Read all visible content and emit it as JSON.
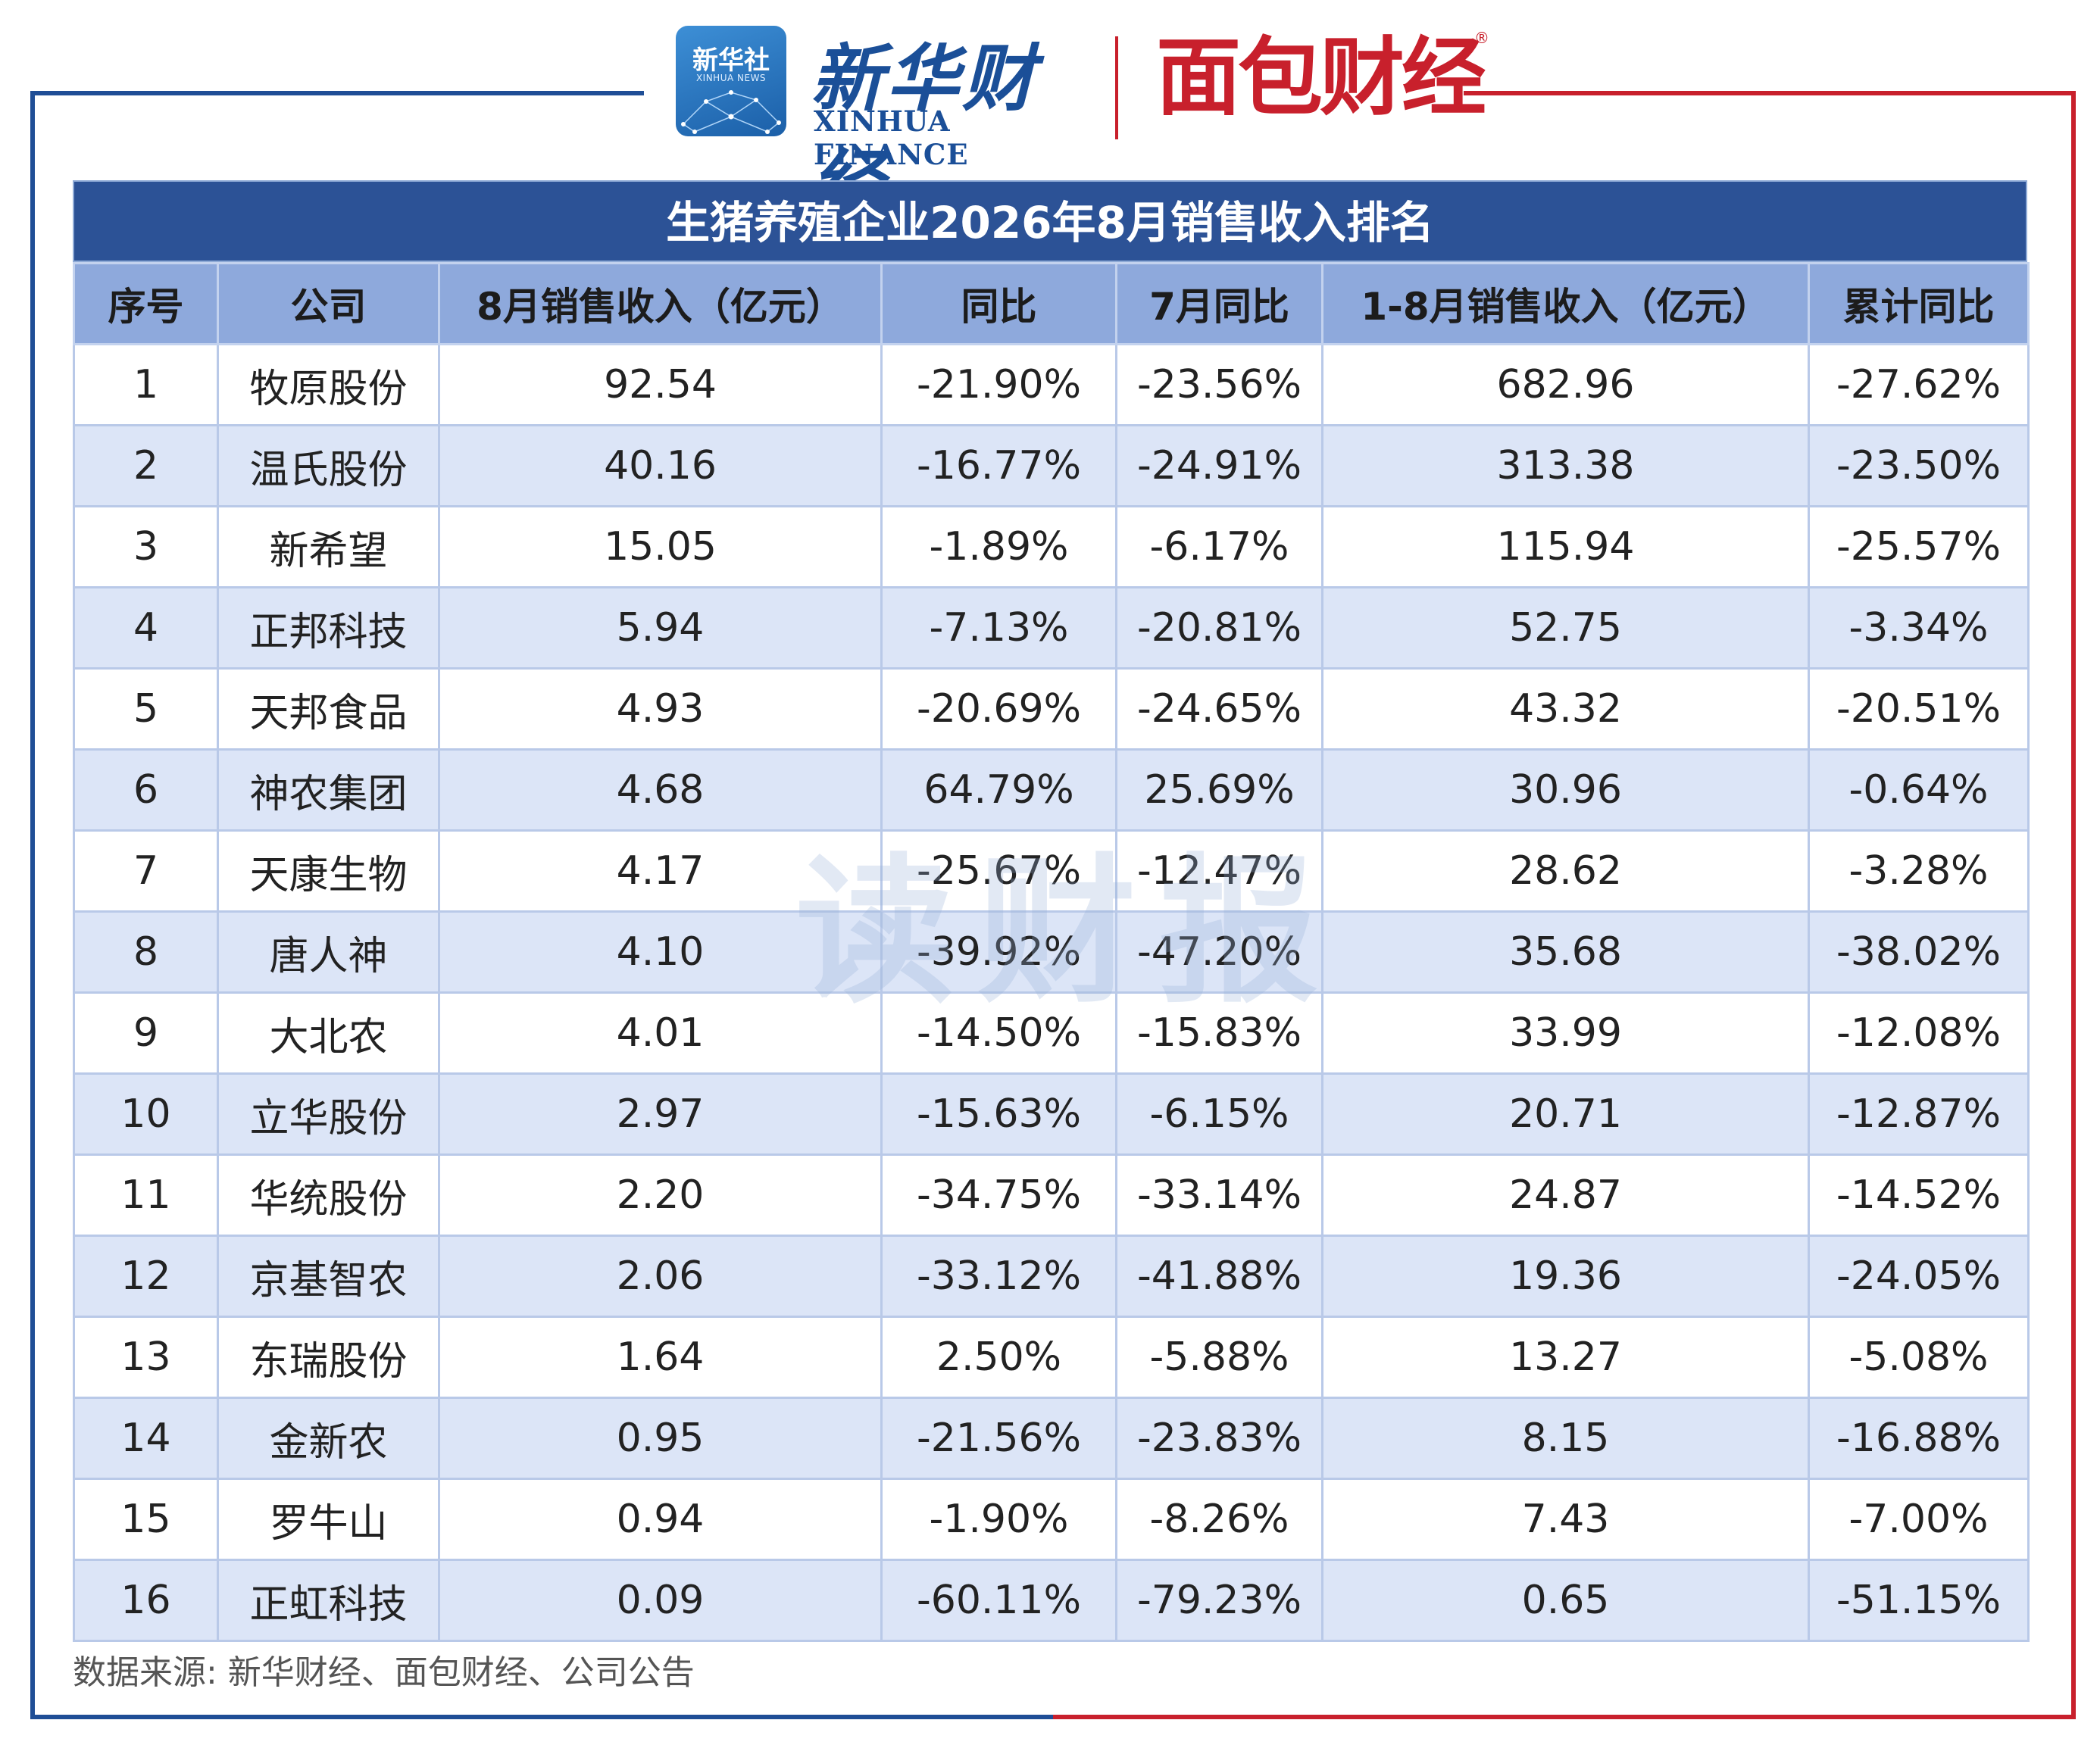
{
  "header": {
    "xinhua_badge_cn": "新华社",
    "xinhua_badge_en": "XINHUA NEWS",
    "xinhua_finance_cn": "新华财经",
    "xinhua_finance_en": "XINHUA FINANCE",
    "mianbao_cn": "面包财经",
    "registered_mark": "®"
  },
  "table": {
    "title": "生猪养殖企业2026年8月销售收入排名",
    "columns": [
      "序号",
      "公司",
      "8月销售收入（亿元）",
      "同比",
      "7月同比",
      "1-8月销售收入（亿元）",
      "累计同比"
    ],
    "rows": [
      [
        "1",
        "牧原股份",
        "92.54",
        "-21.90%",
        "-23.56%",
        "682.96",
        "-27.62%"
      ],
      [
        "2",
        "温氏股份",
        "40.16",
        "-16.77%",
        "-24.91%",
        "313.38",
        "-23.50%"
      ],
      [
        "3",
        "新希望",
        "15.05",
        "-1.89%",
        "-6.17%",
        "115.94",
        "-25.57%"
      ],
      [
        "4",
        "正邦科技",
        "5.94",
        "-7.13%",
        "-20.81%",
        "52.75",
        "-3.34%"
      ],
      [
        "5",
        "天邦食品",
        "4.93",
        "-20.69%",
        "-24.65%",
        "43.32",
        "-20.51%"
      ],
      [
        "6",
        "神农集团",
        "4.68",
        "64.79%",
        "25.69%",
        "30.96",
        "-0.64%"
      ],
      [
        "7",
        "天康生物",
        "4.17",
        "-25.67%",
        "-12.47%",
        "28.62",
        "-3.28%"
      ],
      [
        "8",
        "唐人神",
        "4.10",
        "-39.92%",
        "-47.20%",
        "35.68",
        "-38.02%"
      ],
      [
        "9",
        "大北农",
        "4.01",
        "-14.50%",
        "-15.83%",
        "33.99",
        "-12.08%"
      ],
      [
        "10",
        "立华股份",
        "2.97",
        "-15.63%",
        "-6.15%",
        "20.71",
        "-12.87%"
      ],
      [
        "11",
        "华统股份",
        "2.20",
        "-34.75%",
        "-33.14%",
        "24.87",
        "-14.52%"
      ],
      [
        "12",
        "京基智农",
        "2.06",
        "-33.12%",
        "-41.88%",
        "19.36",
        "-24.05%"
      ],
      [
        "13",
        "东瑞股份",
        "1.64",
        "2.50%",
        "-5.88%",
        "13.27",
        "-5.08%"
      ],
      [
        "14",
        "金新农",
        "0.95",
        "-21.56%",
        "-23.83%",
        "8.15",
        "-16.88%"
      ],
      [
        "15",
        "罗牛山",
        "0.94",
        "-1.90%",
        "-8.26%",
        "7.43",
        "-7.00%"
      ],
      [
        "16",
        "正虹科技",
        "0.09",
        "-60.11%",
        "-79.23%",
        "0.65",
        "-51.15%"
      ]
    ]
  },
  "watermark": "读财报",
  "source": "数据来源: 新华财经、面包财经、公司公告",
  "colors": {
    "title_bg": "#2c5296",
    "header_bg": "#8ea9dc",
    "stripe_bg": "#dce5f7",
    "frame_left": "#1f4e96",
    "frame_right": "#c8202c"
  }
}
